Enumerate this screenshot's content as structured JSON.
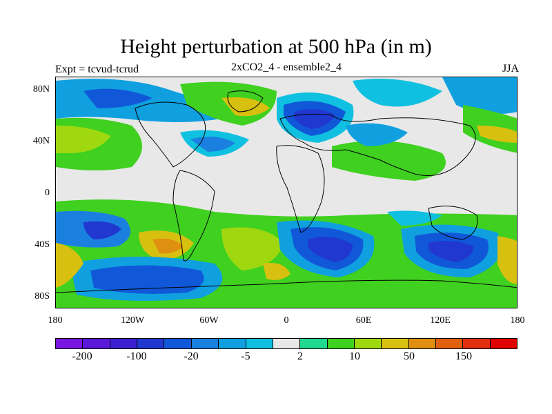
{
  "title": "Height perturbation at 500 hPa (in m)",
  "left_label": "Expt = tcvud-tcrud",
  "center_label": "2xCO2_4 - ensemble2_4",
  "right_label": "JJA",
  "map": {
    "projection": "cylindrical equidistant",
    "lat_ticks": [
      "80N",
      "40N",
      "0",
      "40S",
      "80S"
    ],
    "lon_ticks": [
      "180",
      "120W",
      "60W",
      "0",
      "60E",
      "120E",
      "180"
    ]
  },
  "colorbar": {
    "colors": [
      "#7a14e0",
      "#5a18d8",
      "#3a20d0",
      "#2038d0",
      "#1058d8",
      "#1a80e0",
      "#10a0e0",
      "#10c0e0",
      "#e8e8e8",
      "#20d890",
      "#40d020",
      "#a0d810",
      "#d8c010",
      "#e09010",
      "#e06010",
      "#e03010",
      "#e00000"
    ],
    "labels": [
      "-200",
      "-100",
      "-20",
      "-5",
      "2",
      "10",
      "50",
      "150"
    ]
  }
}
